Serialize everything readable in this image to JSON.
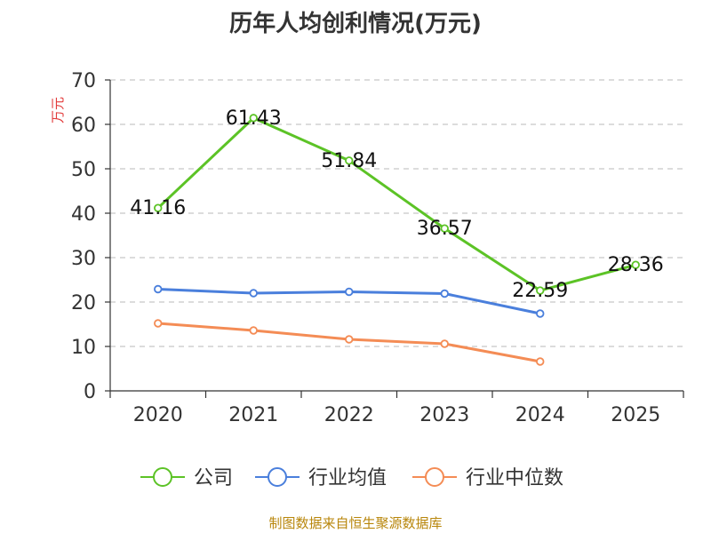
{
  "chart_data": {
    "type": "line",
    "title": "历年人均创利情况(万元)",
    "ylabel": "万元",
    "xlabel": "",
    "ylim": [
      0,
      70
    ],
    "yticks": [
      0,
      10,
      20,
      30,
      40,
      50,
      60,
      70
    ],
    "categories": [
      "2020",
      "2021",
      "2022",
      "2023",
      "2024",
      "2025"
    ],
    "grid": true,
    "legend_position": "bottom",
    "series": [
      {
        "name": "公司",
        "color": "#5cc326",
        "values": [
          41.16,
          61.43,
          51.84,
          36.57,
          22.59,
          28.36
        ],
        "labels": [
          "41.16",
          "61.43",
          "51.84",
          "36.57",
          "22.59",
          "28.36"
        ]
      },
      {
        "name": "行业均值",
        "color": "#4a7fdc",
        "values": [
          22.9,
          22.0,
          22.3,
          21.9,
          17.4,
          null
        ]
      },
      {
        "name": "行业中位数",
        "color": "#f48c55",
        "values": [
          15.2,
          13.6,
          11.6,
          10.6,
          6.6,
          null
        ]
      }
    ]
  },
  "source": "制图数据来自恒生聚源数据库"
}
